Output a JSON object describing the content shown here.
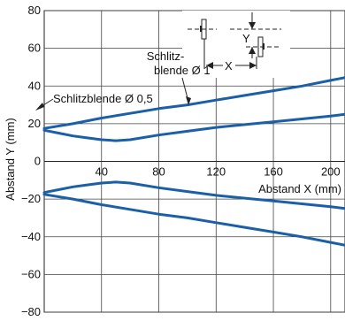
{
  "chart_data": {
    "type": "line",
    "xlabel": "Abstand X (mm)",
    "ylabel": "Abstand Y (mm)",
    "xlim": [
      0,
      210
    ],
    "ylim": [
      -80,
      80
    ],
    "x_ticks": [
      40,
      80,
      120,
      160,
      200
    ],
    "y_ticks": [
      80,
      60,
      40,
      20,
      0,
      -20,
      -40,
      -60,
      -80
    ],
    "x_tick_labels": [
      "40",
      "80",
      "120",
      "160",
      "200"
    ],
    "y_tick_labels": [
      "80",
      "60",
      "40",
      "20",
      "0",
      "−20",
      "−40",
      "−60",
      "−80"
    ],
    "grid": true,
    "series_color": "#1a5fa8",
    "series": [
      {
        "name": "Schlitzblende Ø 1",
        "x": [
          0,
          20,
          40,
          60,
          80,
          100,
          120,
          140,
          160,
          180,
          200,
          210
        ],
        "y": [
          17.5,
          20,
          23,
          25.5,
          28,
          30,
          32.5,
          35,
          37.5,
          40,
          43,
          44.5
        ]
      },
      {
        "name": "Schlitzblende Ø 0,5",
        "x": [
          0,
          10,
          20,
          30,
          40,
          50,
          60,
          80,
          100,
          120,
          140,
          160,
          180,
          200,
          210
        ],
        "y": [
          16.5,
          15,
          13.5,
          12.5,
          11.5,
          11,
          11.5,
          14,
          16,
          18,
          19.5,
          21,
          22.5,
          24,
          25
        ]
      },
      {
        "name": "Schlitzblende Ø 1 (unten)",
        "x": [
          0,
          20,
          40,
          60,
          80,
          100,
          120,
          140,
          160,
          180,
          200,
          210
        ],
        "y": [
          -17.5,
          -20,
          -23,
          -25.5,
          -28,
          -30,
          -32.5,
          -35,
          -37.5,
          -40,
          -43,
          -44.5
        ]
      },
      {
        "name": "Schlitzblende Ø 0,5 (unten)",
        "x": [
          0,
          10,
          20,
          30,
          40,
          50,
          60,
          80,
          100,
          120,
          140,
          160,
          180,
          200,
          210
        ],
        "y": [
          -16.5,
          -15,
          -13.5,
          -12.5,
          -11.5,
          -11,
          -11.5,
          -14,
          -16,
          -18,
          -19.5,
          -21,
          -22.5,
          -24,
          -25
        ]
      }
    ],
    "annotations": {
      "slit1_line1": "Schlitz-",
      "slit1_line2": "blende Ø 1",
      "slit05": "Schlitzblende Ø 0,5",
      "schema_x": "X",
      "schema_y": "Y"
    }
  }
}
